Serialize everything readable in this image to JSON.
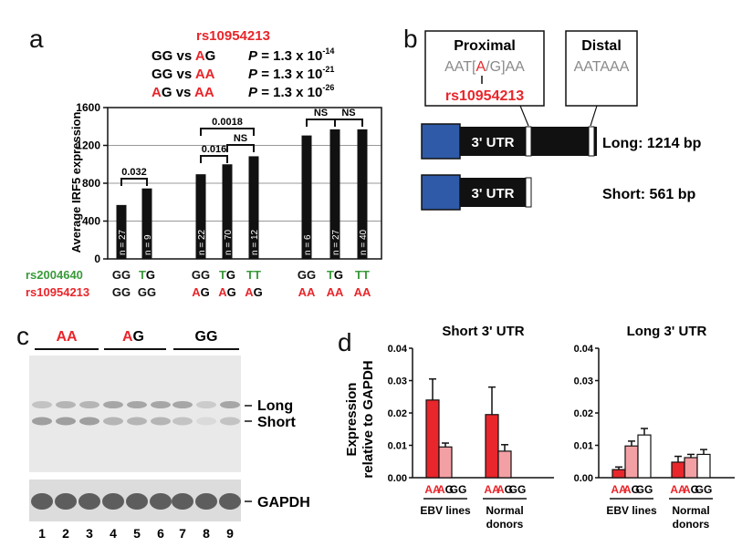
{
  "colors": {
    "red": "#e8262b",
    "green": "#3a9a3a",
    "pink": "#f3a0a4",
    "blue": "#2f5aa8",
    "grey": "#8a8a8a",
    "dark_bar": "#111111"
  },
  "panel_a": {
    "letter": "a",
    "snp_title": "rs10954213",
    "comparisons": [
      {
        "g1": "GG",
        "vs": "vs",
        "g2a": "A",
        "g2b": "G",
        "p_label": "P",
        "p_value": "= 1.3 x 10",
        "exp": "-14"
      },
      {
        "g1": "GG",
        "vs": "vs",
        "g2a": "AA",
        "g2b": "",
        "p_label": "P",
        "p_value": "= 1.3 x 10",
        "exp": "-21"
      },
      {
        "g1a": "A",
        "g1b": "G",
        "vs": "vs",
        "g2a": "AA",
        "g2b": "",
        "p_label": "P",
        "p_value": "= 1.3 x 10",
        "exp": "-26"
      }
    ],
    "row_labels": {
      "snp1": "rs2004640",
      "snp2": "rs10954213"
    },
    "chart_data": {
      "type": "bar",
      "ylabel": "Average IRF5 expression",
      "ylim": [
        0,
        1600
      ],
      "yticks": [
        0,
        400,
        800,
        1200,
        1600
      ],
      "bars": [
        {
          "value": 570,
          "n": "n = 27",
          "rs2004640": [
            "GG",
            ""
          ],
          "rs10954213": [
            "GG",
            ""
          ]
        },
        {
          "value": 745,
          "n": "n = 9",
          "rs2004640": [
            "T",
            "G"
          ],
          "rs10954213": [
            "GG",
            ""
          ]
        },
        {
          "value": 895,
          "n": "n = 22",
          "rs2004640": [
            "GG",
            ""
          ],
          "rs10954213": [
            "A",
            "G"
          ]
        },
        {
          "value": 1000,
          "n": "n = 70",
          "rs2004640": [
            "T",
            "G"
          ],
          "rs10954213": [
            "A",
            "G"
          ]
        },
        {
          "value": 1085,
          "n": "n = 12",
          "rs2004640": [
            "TT",
            ""
          ],
          "rs10954213": [
            "A",
            "G"
          ]
        },
        {
          "value": 1305,
          "n": "n = 6",
          "rs2004640": [
            "GG",
            ""
          ],
          "rs10954213": [
            "AA",
            ""
          ]
        },
        {
          "value": 1370,
          "n": "n = 27",
          "rs2004640": [
            "T",
            "G"
          ],
          "rs10954213": [
            "AA",
            ""
          ]
        },
        {
          "value": 1370,
          "n": "n = 40",
          "rs2004640": [
            "TT",
            ""
          ],
          "rs10954213": [
            "AA",
            ""
          ]
        }
      ],
      "brackets": [
        "0.032",
        "0.016",
        "NS",
        "0.0018",
        "NS",
        "NS"
      ]
    }
  },
  "panel_b": {
    "letter": "b",
    "proximal_title": "Proximal",
    "proximal_seq": [
      "AAT[",
      "A",
      "/G]AA"
    ],
    "proximal_snp": "rs10954213",
    "distal_title": "Distal",
    "distal_seq": "AATAAA",
    "utr_label": "3' UTR",
    "long_label": "Long: 1214 bp",
    "short_label": "Short: 561 bp"
  },
  "panel_c": {
    "letter": "c",
    "groups": [
      [
        "AA",
        ""
      ],
      [
        "A",
        "G"
      ],
      [
        "GG",
        ""
      ]
    ],
    "band_long": "Long",
    "band_short": "Short",
    "band_gapdh": "GAPDH",
    "lanes": [
      "1",
      "2",
      "3",
      "4",
      "5",
      "6",
      "7",
      "8",
      "9"
    ]
  },
  "panel_d": {
    "letter": "d",
    "ylabel_line1": "Expression",
    "ylabel_line2": "relative to GAPDH",
    "group_labels": {
      "ebv": "EBV lines",
      "normal1": "Normal",
      "normal2": "donors"
    },
    "chart_data": [
      {
        "type": "bar",
        "title": "Short 3' UTR",
        "ylim": [
          0,
          0.04
        ],
        "yticks": [
          "0.00",
          "0.01",
          "0.02",
          "0.03",
          "0.04"
        ],
        "categories": [
          "AA",
          "AG",
          "GG"
        ],
        "groups": [
          {
            "name": "EBV lines",
            "values": [
              0.024,
              0.0095,
              0.0
            ],
            "errors": [
              0.0065,
              0.0012,
              0.0
            ]
          },
          {
            "name": "Normal donors",
            "values": [
              0.0195,
              0.0082,
              0.0
            ],
            "errors": [
              0.0085,
              0.002,
              0.0
            ]
          }
        ]
      },
      {
        "type": "bar",
        "title": "Long 3' UTR",
        "ylim": [
          0,
          0.04
        ],
        "yticks": [
          "0.00",
          "0.01",
          "0.02",
          "0.03",
          "0.04"
        ],
        "categories": [
          "AA",
          "AG",
          "GG"
        ],
        "groups": [
          {
            "name": "EBV lines",
            "values": [
              0.0025,
              0.0098,
              0.0132
            ],
            "errors": [
              0.0008,
              0.0015,
              0.002
            ]
          },
          {
            "name": "Normal donors",
            "values": [
              0.0048,
              0.0062,
              0.0072
            ],
            "errors": [
              0.0018,
              0.001,
              0.0015
            ]
          }
        ]
      }
    ]
  }
}
